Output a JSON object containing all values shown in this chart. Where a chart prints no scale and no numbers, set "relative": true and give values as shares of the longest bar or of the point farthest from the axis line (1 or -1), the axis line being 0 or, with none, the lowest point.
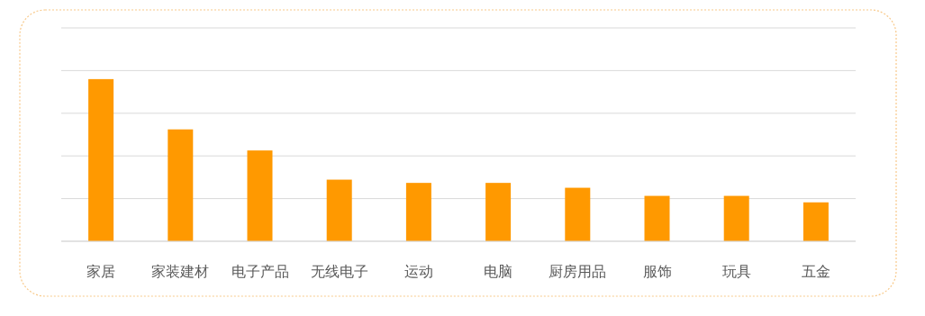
{
  "chart_data": {
    "type": "bar",
    "relative": true,
    "grid": "y",
    "color": "#ff9900",
    "categories": [
      "家居",
      "家装建材",
      "电子产品",
      "无线电子",
      "运动",
      "电脑",
      "厨房用品",
      "服饰",
      "玩具",
      "五金"
    ],
    "values": [
      1,
      0.69,
      0.56,
      0.38,
      0.36,
      0.36,
      0.33,
      0.28,
      0.28,
      0.24
    ]
  }
}
